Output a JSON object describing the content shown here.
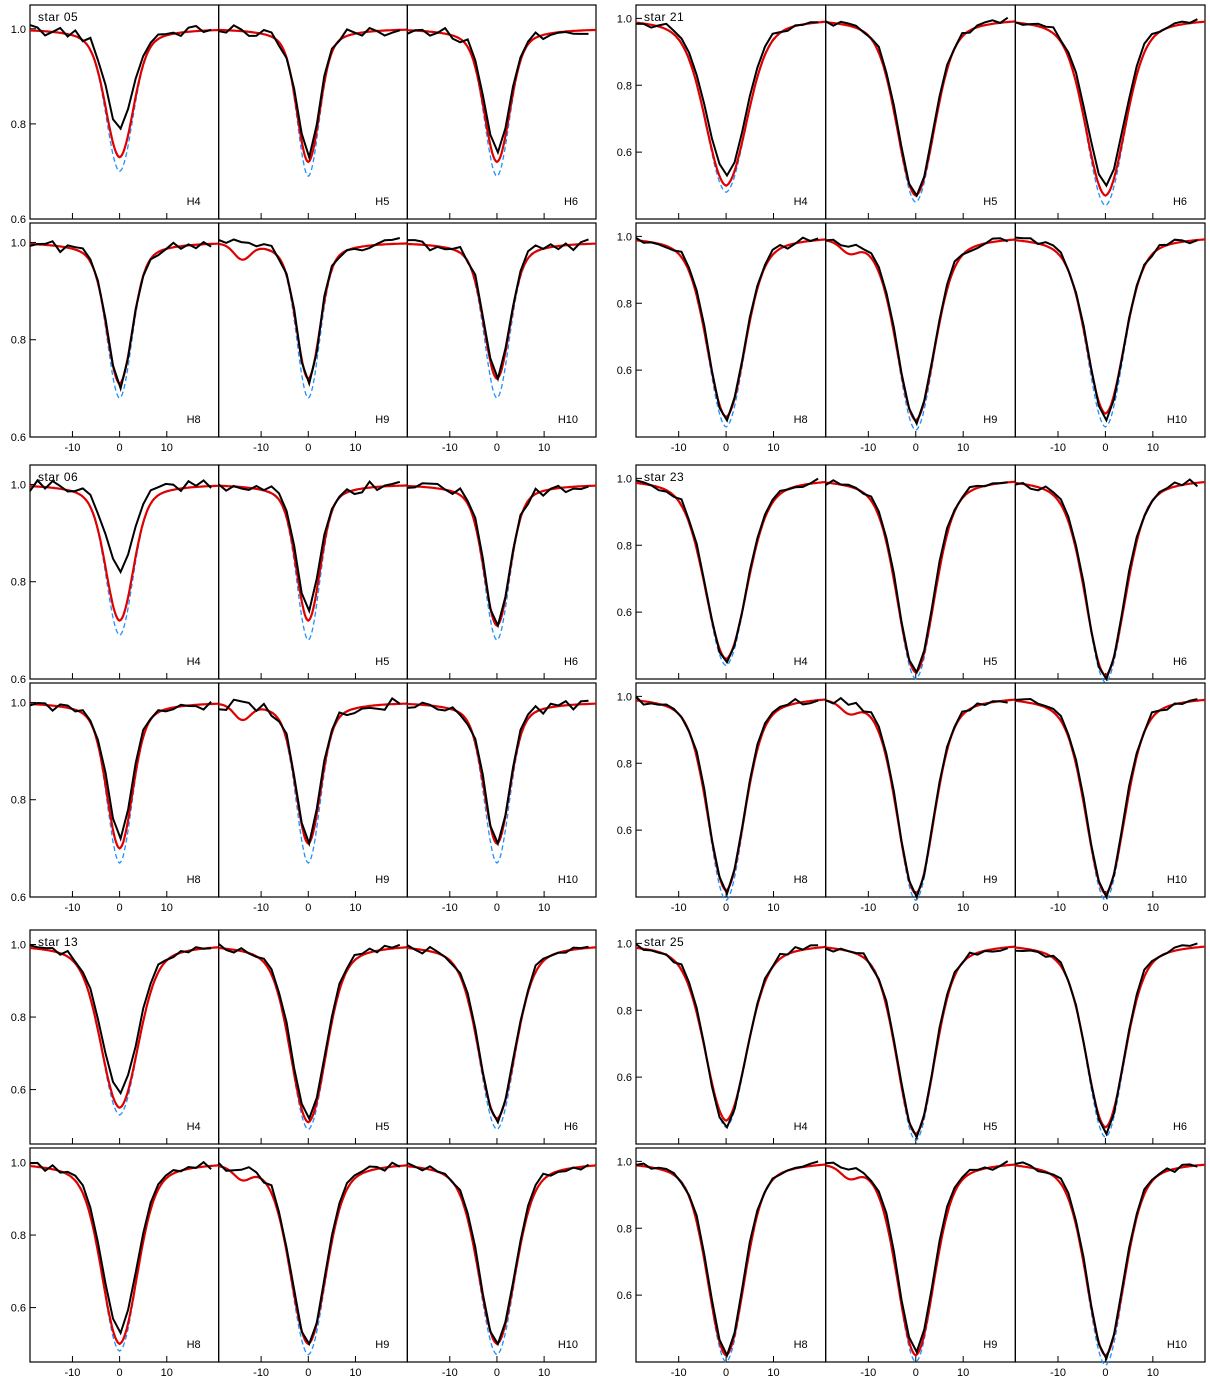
{
  "chart_data": {
    "type": "line",
    "x_axis": {
      "ticks": [
        -10,
        0,
        10
      ],
      "tick_labels": [
        "-10",
        "0",
        "10"
      ],
      "range": [
        -19,
        21
      ]
    },
    "series_styles": [
      {
        "role": "observed",
        "color": "#000000",
        "dash": "solid"
      },
      {
        "role": "model",
        "color": "#e00000",
        "dash": "solid"
      },
      {
        "role": "model-alt",
        "color": "#1e90ff",
        "dash": "dashed"
      }
    ],
    "grid": false,
    "legend": "none",
    "stars": [
      {
        "name": "star 05",
        "rows": [
          {
            "yrange": [
              0.6,
              1.05
            ],
            "yticks": [
              0.6,
              0.8,
              1.0
            ],
            "ytick_labels": [
              "0.6",
              "0.8",
              "1.0"
            ],
            "panels": [
              {
                "label": "H4",
                "obs_min": 0.79,
                "red_min": 0.73,
                "blue_min": 0.7,
                "width": 2.8
              },
              {
                "label": "H5",
                "obs_min": 0.73,
                "red_min": 0.72,
                "blue_min": 0.69,
                "width": 2.3
              },
              {
                "label": "H6",
                "obs_min": 0.74,
                "red_min": 0.72,
                "blue_min": 0.69,
                "width": 2.6
              }
            ]
          },
          {
            "yrange": [
              0.6,
              1.04
            ],
            "yticks": [
              0.6,
              0.8,
              1.0
            ],
            "ytick_labels": [
              "0.6",
              "0.8",
              "1.0"
            ],
            "panels": [
              {
                "label": "H8",
                "obs_min": 0.7,
                "red_min": 0.71,
                "blue_min": 0.68,
                "width": 2.6
              },
              {
                "label": "H9",
                "obs_min": 0.71,
                "red_min": 0.72,
                "blue_min": 0.68,
                "width": 2.4
              },
              {
                "label": "H10",
                "obs_min": 0.72,
                "red_min": 0.72,
                "blue_min": 0.68,
                "width": 2.6
              }
            ]
          }
        ]
      },
      {
        "name": "star 21",
        "rows": [
          {
            "yrange": [
              0.4,
              1.04
            ],
            "yticks": [
              0.6,
              0.8,
              1.0
            ],
            "ytick_labels": [
              "0.6",
              "0.8",
              "1.0"
            ],
            "panels": [
              {
                "label": "H4",
                "obs_min": 0.53,
                "red_min": 0.5,
                "blue_min": 0.48,
                "width": 4.2
              },
              {
                "label": "H5",
                "obs_min": 0.47,
                "red_min": 0.47,
                "blue_min": 0.45,
                "width": 3.8
              },
              {
                "label": "H6",
                "obs_min": 0.5,
                "red_min": 0.47,
                "blue_min": 0.44,
                "width": 4.0
              }
            ]
          },
          {
            "yrange": [
              0.4,
              1.04
            ],
            "yticks": [
              0.6,
              0.8,
              1.0
            ],
            "ytick_labels": [
              "0.6",
              "0.8",
              "1.0"
            ],
            "panels": [
              {
                "label": "H8",
                "obs_min": 0.45,
                "red_min": 0.46,
                "blue_min": 0.43,
                "width": 3.8
              },
              {
                "label": "H9",
                "obs_min": 0.44,
                "red_min": 0.45,
                "blue_min": 0.42,
                "width": 3.8
              },
              {
                "label": "H10",
                "obs_min": 0.45,
                "red_min": 0.47,
                "blue_min": 0.43,
                "width": 3.8
              }
            ]
          }
        ]
      },
      {
        "name": "star 06",
        "rows": [
          {
            "yrange": [
              0.6,
              1.04
            ],
            "yticks": [
              0.6,
              0.8,
              1.0
            ],
            "ytick_labels": [
              "0.6",
              "0.8",
              "1.0"
            ],
            "panels": [
              {
                "label": "H4",
                "obs_min": 0.82,
                "red_min": 0.72,
                "blue_min": 0.69,
                "width": 2.8
              },
              {
                "label": "H5",
                "obs_min": 0.74,
                "red_min": 0.72,
                "blue_min": 0.68,
                "width": 2.4
              },
              {
                "label": "H6",
                "obs_min": 0.71,
                "red_min": 0.71,
                "blue_min": 0.68,
                "width": 2.6
              }
            ]
          },
          {
            "yrange": [
              0.6,
              1.04
            ],
            "yticks": [
              0.6,
              0.8,
              1.0
            ],
            "ytick_labels": [
              "0.6",
              "0.8",
              "1.0"
            ],
            "panels": [
              {
                "label": "H8",
                "obs_min": 0.72,
                "red_min": 0.7,
                "blue_min": 0.67,
                "width": 2.6
              },
              {
                "label": "H9",
                "obs_min": 0.71,
                "red_min": 0.71,
                "blue_min": 0.67,
                "width": 2.5
              },
              {
                "label": "H10",
                "obs_min": 0.71,
                "red_min": 0.71,
                "blue_min": 0.67,
                "width": 2.6
              }
            ]
          }
        ]
      },
      {
        "name": "star 23",
        "rows": [
          {
            "yrange": [
              0.4,
              1.04
            ],
            "yticks": [
              0.6,
              0.8,
              1.0
            ],
            "ytick_labels": [
              "0.6",
              "0.8",
              "1.0"
            ],
            "panels": [
              {
                "label": "H4",
                "obs_min": 0.45,
                "red_min": 0.46,
                "blue_min": 0.44,
                "width": 4.2
              },
              {
                "label": "H5",
                "obs_min": 0.42,
                "red_min": 0.42,
                "blue_min": 0.4,
                "width": 3.8
              },
              {
                "label": "H6",
                "obs_min": 0.4,
                "red_min": 0.41,
                "blue_min": 0.39,
                "width": 4.0
              }
            ]
          },
          {
            "yrange": [
              0.4,
              1.04
            ],
            "yticks": [
              0.6,
              0.8,
              1.0
            ],
            "ytick_labels": [
              "0.6",
              "0.8",
              "1.0"
            ],
            "panels": [
              {
                "label": "H8",
                "obs_min": 0.41,
                "red_min": 0.42,
                "blue_min": 0.39,
                "width": 3.7
              },
              {
                "label": "H9",
                "obs_min": 0.4,
                "red_min": 0.41,
                "blue_min": 0.39,
                "width": 3.7
              },
              {
                "label": "H10",
                "obs_min": 0.4,
                "red_min": 0.41,
                "blue_min": 0.39,
                "width": 3.9
              }
            ]
          }
        ]
      },
      {
        "name": "star 13",
        "rows": [
          {
            "yrange": [
              0.45,
              1.04
            ],
            "yticks": [
              0.6,
              0.8,
              1.0
            ],
            "ytick_labels": [
              "0.6",
              "0.8",
              "1.0"
            ],
            "panels": [
              {
                "label": "H4",
                "obs_min": 0.59,
                "red_min": 0.55,
                "blue_min": 0.53,
                "width": 3.8
              },
              {
                "label": "H5",
                "obs_min": 0.52,
                "red_min": 0.51,
                "blue_min": 0.49,
                "width": 3.6
              },
              {
                "label": "H6",
                "obs_min": 0.51,
                "red_min": 0.52,
                "blue_min": 0.49,
                "width": 3.7
              }
            ]
          },
          {
            "yrange": [
              0.45,
              1.04
            ],
            "yticks": [
              0.6,
              0.8,
              1.0
            ],
            "ytick_labels": [
              "0.6",
              "0.8",
              "1.0"
            ],
            "panels": [
              {
                "label": "H8",
                "obs_min": 0.53,
                "red_min": 0.5,
                "blue_min": 0.48,
                "width": 3.6
              },
              {
                "label": "H9",
                "obs_min": 0.5,
                "red_min": 0.5,
                "blue_min": 0.47,
                "width": 3.6
              },
              {
                "label": "H10",
                "obs_min": 0.5,
                "red_min": 0.5,
                "blue_min": 0.47,
                "width": 3.7
              }
            ]
          }
        ]
      },
      {
        "name": "star 25",
        "rows": [
          {
            "yrange": [
              0.4,
              1.04
            ],
            "yticks": [
              0.6,
              0.8,
              1.0
            ],
            "ytick_labels": [
              "0.6",
              "0.8",
              "1.0"
            ],
            "panels": [
              {
                "label": "H4",
                "obs_min": 0.45,
                "red_min": 0.47,
                "blue_min": 0.45,
                "width": 4.2
              },
              {
                "label": "H5",
                "obs_min": 0.42,
                "red_min": 0.43,
                "blue_min": 0.41,
                "width": 3.8
              },
              {
                "label": "H6",
                "obs_min": 0.43,
                "red_min": 0.45,
                "blue_min": 0.42,
                "width": 3.9
              }
            ]
          },
          {
            "yrange": [
              0.4,
              1.04
            ],
            "yticks": [
              0.6,
              0.8,
              1.0
            ],
            "ytick_labels": [
              "0.6",
              "0.8",
              "1.0"
            ],
            "panels": [
              {
                "label": "H8",
                "obs_min": 0.42,
                "red_min": 0.42,
                "blue_min": 0.4,
                "width": 3.7
              },
              {
                "label": "H9",
                "obs_min": 0.43,
                "red_min": 0.42,
                "blue_min": 0.4,
                "width": 3.7
              },
              {
                "label": "H10",
                "obs_min": 0.41,
                "red_min": 0.42,
                "blue_min": 0.39,
                "width": 3.8
              }
            ]
          }
        ]
      }
    ]
  }
}
